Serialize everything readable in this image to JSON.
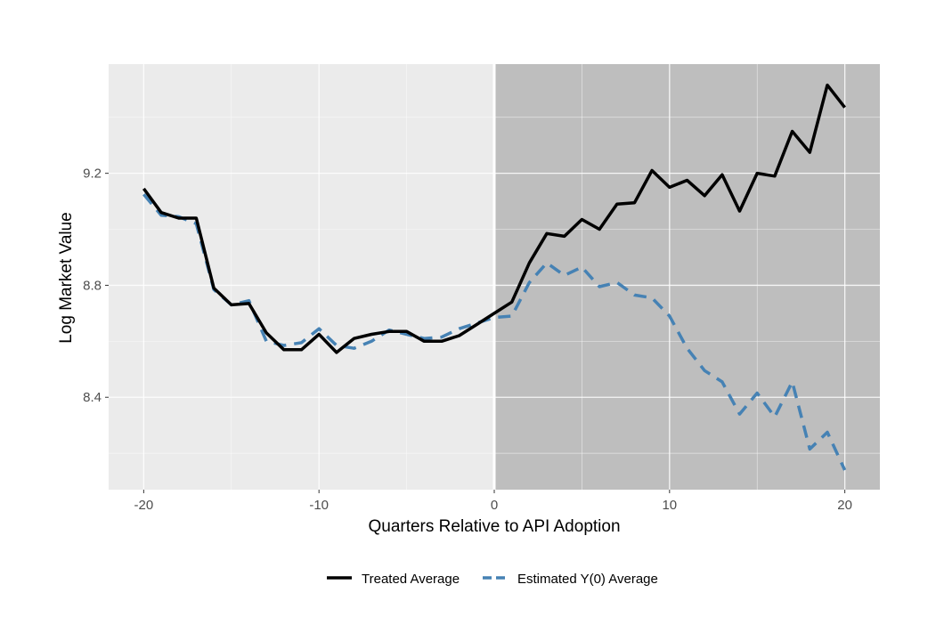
{
  "chart_data": {
    "type": "line",
    "xlabel": "Quarters Relative to API Adoption",
    "ylabel": "Log Market Value",
    "xlim": [
      -22,
      22
    ],
    "ylim": [
      8.07,
      9.59
    ],
    "x_ticks": [
      -20,
      -10,
      0,
      10,
      20
    ],
    "y_ticks": [
      8.4,
      8.8,
      9.2
    ],
    "x_tick_labels": [
      "-20",
      "-10",
      "0",
      "10",
      "20"
    ],
    "y_tick_labels": [
      "8.4",
      "8.8",
      "9.2"
    ],
    "shaded_region": [
      0,
      22
    ],
    "vline_x": 0,
    "grid": true,
    "legend_position": "bottom",
    "colors": {
      "panel_background": "#ebebeb",
      "shaded": "#bebebe",
      "grid": "#ffffff",
      "treated": "#000000",
      "estimated": "#4682b4"
    },
    "x": [
      -20,
      -19,
      -18,
      -17,
      -16,
      -15,
      -14,
      -13,
      -12,
      -11,
      -10,
      -9,
      -8,
      -7,
      -6,
      -5,
      -4,
      -3,
      -2,
      -1,
      0,
      1,
      2,
      3,
      4,
      5,
      6,
      7,
      8,
      9,
      10,
      11,
      12,
      13,
      14,
      15,
      16,
      17,
      18,
      19,
      20
    ],
    "series": [
      {
        "name": "Treated Average",
        "style": "solid",
        "values": [
          9.145,
          9.06,
          9.04,
          9.04,
          8.79,
          8.73,
          8.735,
          8.63,
          8.57,
          8.57,
          8.625,
          8.56,
          8.61,
          8.625,
          8.635,
          8.635,
          8.6,
          8.6,
          8.62,
          8.66,
          8.7,
          8.74,
          8.88,
          8.985,
          8.975,
          9.035,
          9.0,
          9.09,
          9.095,
          9.21,
          9.15,
          9.175,
          9.12,
          9.195,
          9.065,
          9.2,
          9.19,
          9.35,
          9.275,
          9.515,
          9.435
        ]
      },
      {
        "name": "Estimated Y(0) Average",
        "style": "dashed",
        "values": [
          9.125,
          9.05,
          9.045,
          9.02,
          8.785,
          8.73,
          8.745,
          8.6,
          8.585,
          8.595,
          8.645,
          8.585,
          8.575,
          8.6,
          8.64,
          8.625,
          8.61,
          8.615,
          8.645,
          8.665,
          8.685,
          8.69,
          8.81,
          8.88,
          8.835,
          8.865,
          8.795,
          8.81,
          8.765,
          8.755,
          8.69,
          8.575,
          8.495,
          8.455,
          8.34,
          8.415,
          8.33,
          8.455,
          8.215,
          8.275,
          8.14
        ]
      }
    ]
  }
}
